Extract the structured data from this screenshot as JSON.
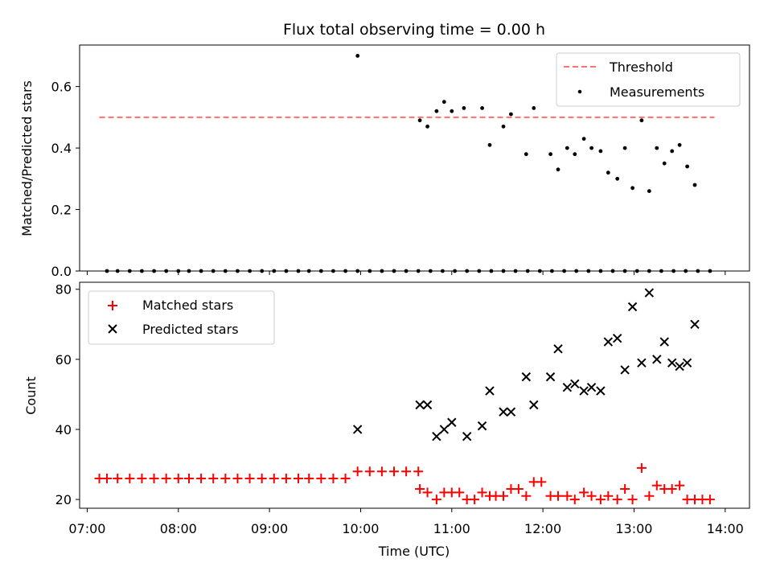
{
  "chart_data": [
    {
      "type": "scatter",
      "title": "Flux total observing time = 0.00 h",
      "xlabel": "",
      "ylabel": "Matched/Predicted stars",
      "ylim": [
        0,
        0.735
      ],
      "xlim": [
        "06:55",
        "14:16"
      ],
      "yticks": [
        "0.0",
        "0.2",
        "0.4",
        "0.6"
      ],
      "legend_position": "top-right",
      "threshold": {
        "name": "Threshold",
        "value": 0.5,
        "x_range": [
          "07:08",
          "13:53"
        ],
        "color": "#ff7070"
      },
      "series": [
        {
          "name": "Measurements",
          "color": "#000000",
          "points": [
            [
              "07:13",
              0
            ],
            [
              "07:20",
              0
            ],
            [
              "07:28",
              0
            ],
            [
              "07:36",
              0
            ],
            [
              "07:44",
              0
            ],
            [
              "07:52",
              0
            ],
            [
              "08:00",
              0
            ],
            [
              "08:07",
              0
            ],
            [
              "08:15",
              0
            ],
            [
              "08:23",
              0
            ],
            [
              "08:31",
              0
            ],
            [
              "08:39",
              0
            ],
            [
              "08:47",
              0
            ],
            [
              "08:55",
              0
            ],
            [
              "09:03",
              0
            ],
            [
              "09:11",
              0
            ],
            [
              "09:19",
              0
            ],
            [
              "09:26",
              0
            ],
            [
              "09:34",
              0
            ],
            [
              "09:42",
              0
            ],
            [
              "09:50",
              0
            ],
            [
              "09:58",
              0
            ],
            [
              "10:06",
              0
            ],
            [
              "10:14",
              0
            ],
            [
              "10:22",
              0
            ],
            [
              "10:30",
              0
            ],
            [
              "10:38",
              0
            ],
            [
              "10:46",
              0
            ],
            [
              "10:54",
              0
            ],
            [
              "11:02",
              0
            ],
            [
              "11:10",
              0
            ],
            [
              "11:18",
              0
            ],
            [
              "11:26",
              0
            ],
            [
              "11:34",
              0
            ],
            [
              "11:42",
              0
            ],
            [
              "11:50",
              0
            ],
            [
              "11:58",
              0
            ],
            [
              "12:06",
              0
            ],
            [
              "12:14",
              0
            ],
            [
              "12:22",
              0
            ],
            [
              "12:30",
              0
            ],
            [
              "12:38",
              0
            ],
            [
              "12:46",
              0
            ],
            [
              "12:54",
              0
            ],
            [
              "13:02",
              0
            ],
            [
              "13:10",
              0
            ],
            [
              "13:18",
              0
            ],
            [
              "13:26",
              0
            ],
            [
              "13:34",
              0
            ],
            [
              "13:42",
              0
            ],
            [
              "13:50",
              0
            ],
            [
              "09:58",
              0.7
            ],
            [
              "10:39",
              0.49
            ],
            [
              "10:44",
              0.47
            ],
            [
              "10:50",
              0.52
            ],
            [
              "10:55",
              0.55
            ],
            [
              "11:00",
              0.52
            ],
            [
              "11:08",
              0.53
            ],
            [
              "11:20",
              0.53
            ],
            [
              "11:25",
              0.41
            ],
            [
              "11:34",
              0.47
            ],
            [
              "11:39",
              0.51
            ],
            [
              "11:49",
              0.38
            ],
            [
              "11:54",
              0.53
            ],
            [
              "12:05",
              0.38
            ],
            [
              "12:10",
              0.33
            ],
            [
              "12:16",
              0.4
            ],
            [
              "12:21",
              0.38
            ],
            [
              "12:27",
              0.43
            ],
            [
              "12:32",
              0.4
            ],
            [
              "12:38",
              0.39
            ],
            [
              "12:43",
              0.32
            ],
            [
              "12:49",
              0.3
            ],
            [
              "12:54",
              0.4
            ],
            [
              "12:59",
              0.27
            ],
            [
              "13:05",
              0.49
            ],
            [
              "13:10",
              0.26
            ],
            [
              "13:15",
              0.4
            ],
            [
              "13:20",
              0.35
            ],
            [
              "13:25",
              0.39
            ],
            [
              "13:30",
              0.41
            ],
            [
              "13:35",
              0.34
            ],
            [
              "13:40",
              0.28
            ]
          ]
        }
      ]
    },
    {
      "type": "scatter",
      "title": "",
      "xlabel": "Time (UTC)",
      "ylabel": "Count",
      "ylim": [
        17.5,
        82
      ],
      "xlim": [
        "06:55",
        "14:16"
      ],
      "xticks": [
        "07:00",
        "08:00",
        "09:00",
        "10:00",
        "11:00",
        "12:00",
        "13:00",
        "14:00"
      ],
      "yticks": [
        "20",
        "40",
        "60",
        "80"
      ],
      "legend_position": "top-left",
      "series": [
        {
          "name": "Matched stars",
          "marker": "plus",
          "color": "#ff0000",
          "points": [
            [
              "07:08",
              26
            ],
            [
              "07:13",
              26
            ],
            [
              "07:20",
              26
            ],
            [
              "07:28",
              26
            ],
            [
              "07:36",
              26
            ],
            [
              "07:44",
              26
            ],
            [
              "07:52",
              26
            ],
            [
              "08:00",
              26
            ],
            [
              "08:07",
              26
            ],
            [
              "08:15",
              26
            ],
            [
              "08:23",
              26
            ],
            [
              "08:31",
              26
            ],
            [
              "08:39",
              26
            ],
            [
              "08:47",
              26
            ],
            [
              "08:55",
              26
            ],
            [
              "09:03",
              26
            ],
            [
              "09:11",
              26
            ],
            [
              "09:19",
              26
            ],
            [
              "09:26",
              26
            ],
            [
              "09:34",
              26
            ],
            [
              "09:42",
              26
            ],
            [
              "09:50",
              26
            ],
            [
              "09:58",
              28
            ],
            [
              "10:06",
              28
            ],
            [
              "10:14",
              28
            ],
            [
              "10:22",
              28
            ],
            [
              "10:30",
              28
            ],
            [
              "10:38",
              28
            ],
            [
              "10:39",
              23
            ],
            [
              "10:44",
              22
            ],
            [
              "10:50",
              20
            ],
            [
              "10:55",
              22
            ],
            [
              "11:00",
              22
            ],
            [
              "11:05",
              22
            ],
            [
              "11:10",
              20
            ],
            [
              "11:15",
              20
            ],
            [
              "11:20",
              22
            ],
            [
              "11:25",
              21
            ],
            [
              "11:29",
              21
            ],
            [
              "11:34",
              21
            ],
            [
              "11:39",
              23
            ],
            [
              "11:44",
              23
            ],
            [
              "11:49",
              21
            ],
            [
              "11:54",
              25
            ],
            [
              "11:59",
              25
            ],
            [
              "12:05",
              21
            ],
            [
              "12:10",
              21
            ],
            [
              "12:16",
              21
            ],
            [
              "12:21",
              20
            ],
            [
              "12:27",
              22
            ],
            [
              "12:32",
              21
            ],
            [
              "12:38",
              20
            ],
            [
              "12:43",
              21
            ],
            [
              "12:49",
              20
            ],
            [
              "12:54",
              23
            ],
            [
              "12:59",
              20
            ],
            [
              "13:05",
              29
            ],
            [
              "13:10",
              21
            ],
            [
              "13:15",
              24
            ],
            [
              "13:20",
              23
            ],
            [
              "13:25",
              23
            ],
            [
              "13:30",
              24
            ],
            [
              "13:35",
              20
            ],
            [
              "13:40",
              20
            ],
            [
              "13:45",
              20
            ],
            [
              "13:50",
              20
            ]
          ]
        },
        {
          "name": "Predicted stars",
          "marker": "x",
          "color": "#000000",
          "points": [
            [
              "09:58",
              40
            ],
            [
              "10:39",
              47
            ],
            [
              "10:44",
              47
            ],
            [
              "10:50",
              38
            ],
            [
              "10:55",
              40
            ],
            [
              "11:00",
              42
            ],
            [
              "11:10",
              38
            ],
            [
              "11:20",
              41
            ],
            [
              "11:25",
              51
            ],
            [
              "11:34",
              45
            ],
            [
              "11:39",
              45
            ],
            [
              "11:49",
              55
            ],
            [
              "11:54",
              47
            ],
            [
              "12:05",
              55
            ],
            [
              "12:10",
              63
            ],
            [
              "12:16",
              52
            ],
            [
              "12:21",
              53
            ],
            [
              "12:27",
              51
            ],
            [
              "12:32",
              52
            ],
            [
              "12:38",
              51
            ],
            [
              "12:43",
              65
            ],
            [
              "12:49",
              66
            ],
            [
              "12:54",
              57
            ],
            [
              "12:59",
              75
            ],
            [
              "13:05",
              59
            ],
            [
              "13:10",
              79
            ],
            [
              "13:15",
              60
            ],
            [
              "13:20",
              65
            ],
            [
              "13:25",
              59
            ],
            [
              "13:30",
              58
            ],
            [
              "13:35",
              59
            ],
            [
              "13:40",
              70
            ]
          ]
        }
      ]
    }
  ]
}
